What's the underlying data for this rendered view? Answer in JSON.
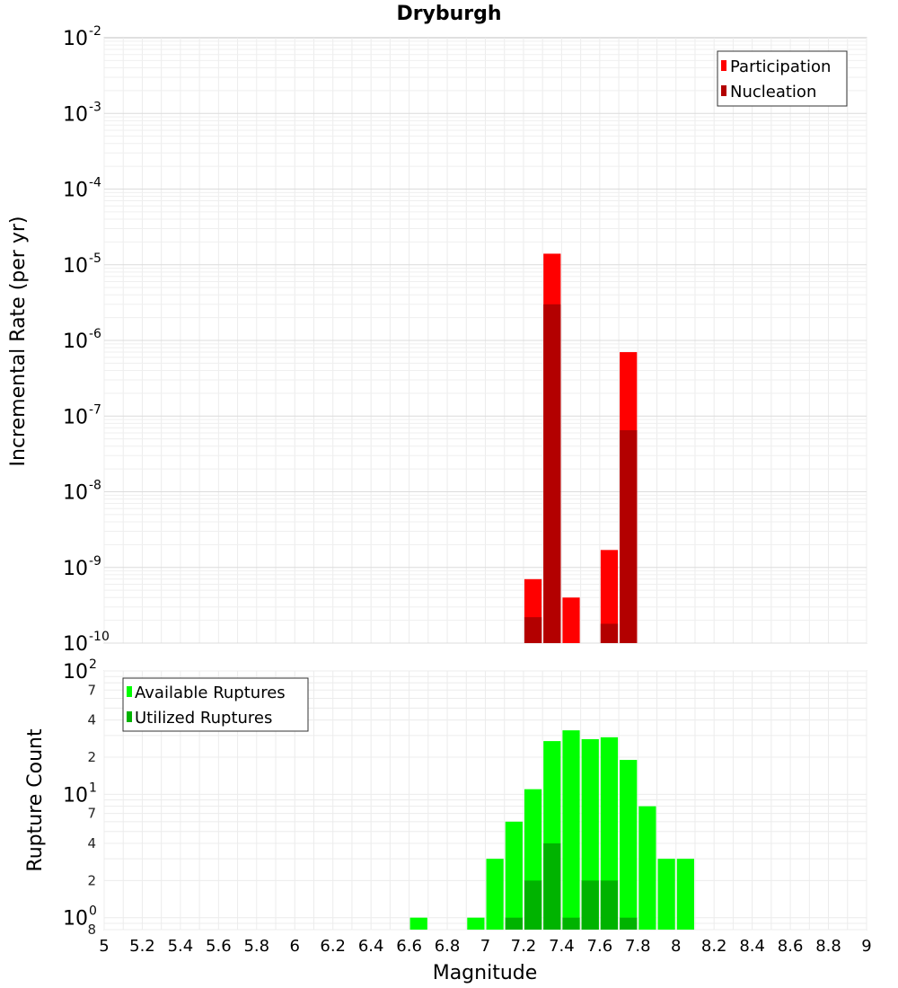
{
  "chart_data": [
    {
      "type": "bar",
      "title": "Dryburgh",
      "ylabel": "Incremental Rate (per yr)",
      "yscale": "log",
      "ylim": [
        1e-10,
        0.01
      ],
      "xlim": [
        5,
        9
      ],
      "bar_width": 0.1,
      "legend_position": "top-right",
      "grid": true,
      "series": [
        {
          "name": "Participation",
          "color": "#ff0000",
          "x": [
            7.25,
            7.35,
            7.45,
            7.65,
            7.75
          ],
          "values": [
            7e-10,
            1.4e-05,
            4e-10,
            1.7e-09,
            7e-07
          ]
        },
        {
          "name": "Nucleation",
          "color": "#b30000",
          "x": [
            7.25,
            7.35,
            7.65,
            7.75
          ],
          "values": [
            2.2e-10,
            3e-06,
            1.8e-10,
            6.5e-08
          ]
        }
      ]
    },
    {
      "type": "bar",
      "xlabel": "Magnitude",
      "ylabel": "Rupture Count",
      "yscale": "log",
      "ylim": [
        0.8,
        100
      ],
      "xlim": [
        5,
        9
      ],
      "bar_width": 0.1,
      "legend_position": "top-left",
      "grid": true,
      "series": [
        {
          "name": "Available Ruptures",
          "color": "#00ff00",
          "x": [
            6.65,
            6.95,
            7.05,
            7.15,
            7.25,
            7.35,
            7.45,
            7.55,
            7.65,
            7.75,
            7.85,
            7.95,
            8.05
          ],
          "values": [
            1,
            1,
            3,
            6,
            11,
            27,
            33,
            28,
            29,
            19,
            8,
            3,
            3
          ]
        },
        {
          "name": "Utilized Ruptures",
          "color": "#00b300",
          "x": [
            7.15,
            7.25,
            7.35,
            7.45,
            7.55,
            7.65,
            7.75
          ],
          "values": [
            1,
            2,
            4,
            1,
            2,
            2,
            1
          ]
        }
      ]
    }
  ],
  "axes": {
    "x_ticks": [
      "5",
      "5.2",
      "5.4",
      "5.6",
      "5.8",
      "6",
      "6.2",
      "6.4",
      "6.6",
      "6.8",
      "7",
      "7.2",
      "7.4",
      "7.6",
      "7.8",
      "8",
      "8.2",
      "8.4",
      "8.6",
      "8.8",
      "9"
    ],
    "top_y_ticks": [
      {
        "base": "10",
        "exp": "-2"
      },
      {
        "base": "10",
        "exp": "-3"
      },
      {
        "base": "10",
        "exp": "-4"
      },
      {
        "base": "10",
        "exp": "-5"
      },
      {
        "base": "10",
        "exp": "-6"
      },
      {
        "base": "10",
        "exp": "-7"
      },
      {
        "base": "10",
        "exp": "-8"
      },
      {
        "base": "10",
        "exp": "-9"
      },
      {
        "base": "10",
        "exp": "-10"
      }
    ],
    "bottom_y_major": [
      {
        "base": "10",
        "exp": "2"
      },
      {
        "base": "10",
        "exp": "1"
      },
      {
        "base": "10",
        "exp": "0"
      }
    ],
    "bottom_y_minor": [
      "7",
      "4",
      "2",
      "7",
      "4",
      "2",
      "8"
    ]
  }
}
